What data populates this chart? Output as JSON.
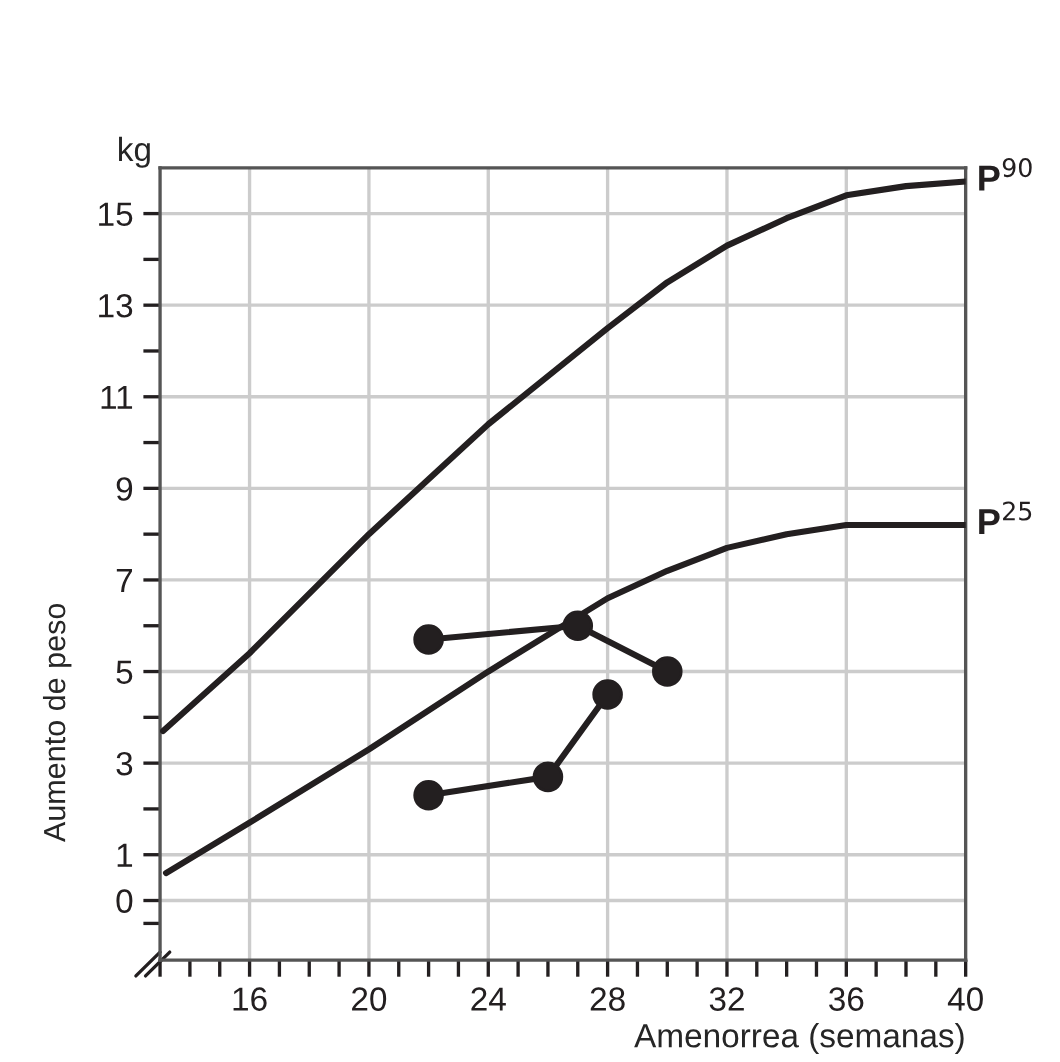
{
  "chart_data": {
    "type": "line",
    "xlabel": "Amenorrea (semanas)",
    "ylabel": "Aumento de peso",
    "annotations": [
      "kg"
    ],
    "xlim": [
      13,
      40
    ],
    "ylim": [
      -1.3,
      16
    ],
    "xticks": [
      {
        "value": 13,
        "label": null
      },
      {
        "value": 14,
        "label": null
      },
      {
        "value": 15,
        "label": null
      },
      16,
      {
        "value": 17,
        "label": null
      },
      {
        "value": 18,
        "label": null
      },
      {
        "value": 19,
        "label": null
      },
      20,
      {
        "value": 21,
        "label": null
      },
      {
        "value": 22,
        "label": null
      },
      {
        "value": 23,
        "label": null
      },
      24,
      {
        "value": 25,
        "label": null
      },
      {
        "value": 26,
        "label": null
      },
      {
        "value": 27,
        "label": null
      },
      28,
      {
        "value": 29,
        "label": null
      },
      {
        "value": 30,
        "label": null
      },
      {
        "value": 31,
        "label": null
      },
      32,
      {
        "value": 33,
        "label": null
      },
      {
        "value": 34,
        "label": null
      },
      {
        "value": 35,
        "label": null
      },
      36,
      {
        "value": 37,
        "label": null
      },
      {
        "value": 38,
        "label": null
      },
      {
        "value": 39,
        "label": null
      },
      40
    ],
    "yticks": [
      {
        "value": -0.5,
        "label": null
      },
      0,
      1,
      {
        "value": 2,
        "label": null
      },
      3,
      {
        "value": 4,
        "label": null
      },
      5,
      {
        "value": 6,
        "label": null
      },
      7,
      {
        "value": 8,
        "label": null
      },
      9,
      {
        "value": 10,
        "label": null
      },
      11,
      {
        "value": 12,
        "label": null
      },
      13,
      {
        "value": 14,
        "label": null
      },
      15
    ],
    "grid": true,
    "legend": false,
    "series": [
      {
        "name": "P$^{90}$",
        "color": "#231f20",
        "marker": "none",
        "x": [
          13.1,
          16,
          20,
          24,
          28,
          30,
          32,
          34,
          36,
          38,
          40
        ],
        "values": [
          3.7,
          5.4,
          8.0,
          10.4,
          12.5,
          13.5,
          14.3,
          14.9,
          15.4,
          15.6,
          15.7
        ]
      },
      {
        "name": "P$^{25}$",
        "color": "#231f20",
        "marker": "none",
        "x": [
          13.2,
          16,
          20,
          24,
          28,
          30,
          32,
          34,
          36,
          38,
          40
        ],
        "values": [
          0.6,
          1.7,
          3.3,
          5.0,
          6.6,
          7.2,
          7.7,
          8.0,
          8.2,
          8.2,
          8.2
        ]
      },
      {
        "color": "#231f20",
        "marker": "circle",
        "x": [
          22,
          27,
          30
        ],
        "values": [
          5.7,
          6.0,
          5.0
        ]
      },
      {
        "color": "#231f20",
        "marker": "circle",
        "x": [
          22,
          26,
          28
        ],
        "values": [
          2.3,
          2.7,
          4.5
        ]
      }
    ]
  }
}
